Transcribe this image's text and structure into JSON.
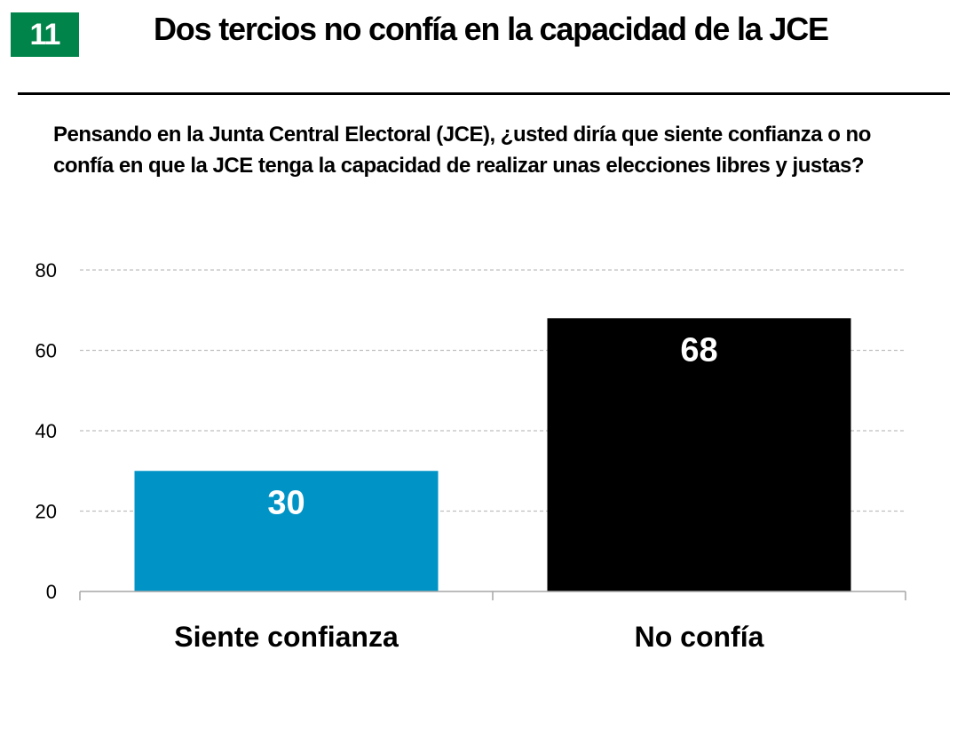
{
  "header": {
    "badge_number": "11",
    "title": "Dos tercios no confía en la capacidad de la JCE"
  },
  "question": "Pensando en la Junta Central Electoral (JCE), ¿usted diría que siente confianza o no confía en  que la JCE tenga la capacidad de realizar unas elecciones libres y justas?",
  "colors": {
    "badge": "#00844a",
    "siente_confianza": "#0094c6",
    "no_confia": "#000000",
    "gridline": "#bfbfbf",
    "axis": "#a6a6a6"
  },
  "chart_data": {
    "type": "bar",
    "categories": [
      "Siente confianza",
      "No confía"
    ],
    "values": [
      30,
      68
    ],
    "bar_colors": [
      "#0094c6",
      "#000000"
    ],
    "data_labels": [
      "30",
      "68"
    ],
    "ylim": [
      0,
      80
    ],
    "yticks": [
      0,
      20,
      40,
      60,
      80
    ],
    "ytick_labels": [
      "0",
      "20",
      "40",
      "60",
      "80"
    ],
    "grid": "horizontal dashed",
    "legend": "none",
    "xlabel": "",
    "ylabel": ""
  }
}
